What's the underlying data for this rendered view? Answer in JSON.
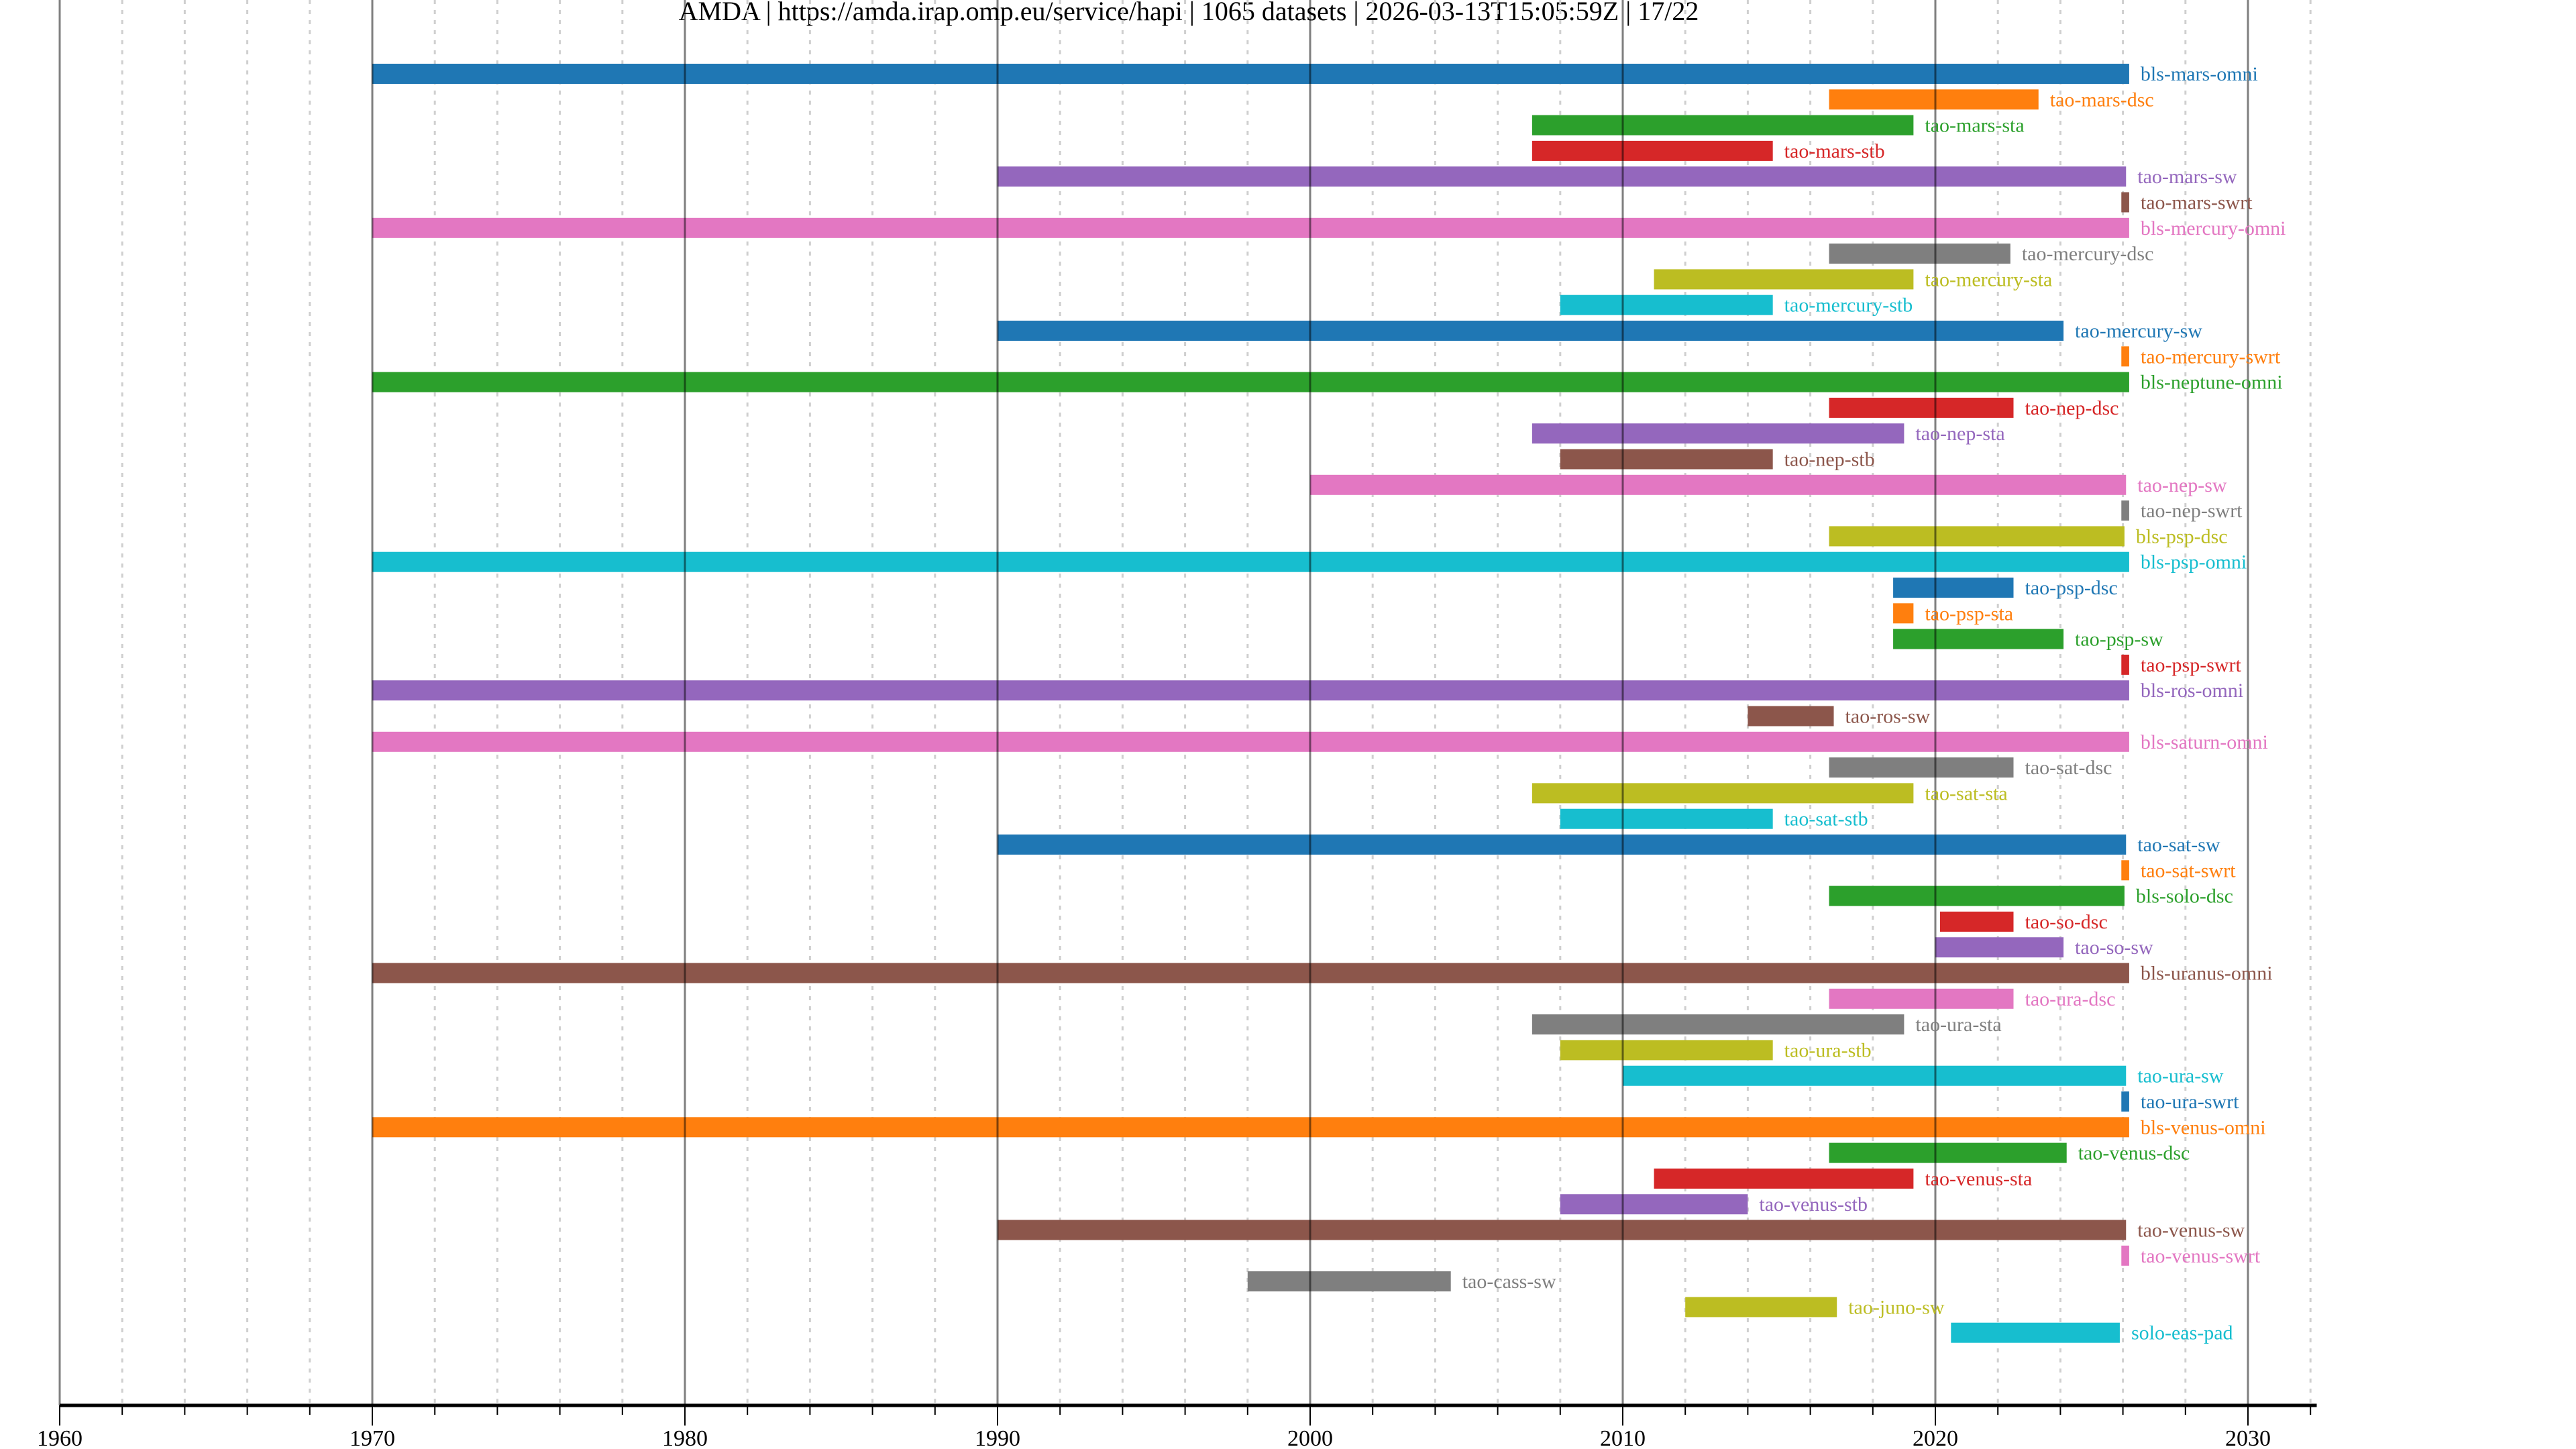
{
  "chart_data": {
    "type": "bar",
    "orientation": "horizontal-timeline",
    "title": "AMDA | https://amda.irap.omp.eu/service/hapi | 1065 datasets | 2026-03-13T15:05:59Z | 17/22",
    "xlabel": "",
    "ylabel": "",
    "xlim": [
      1960,
      2032.2
    ],
    "xticks": [
      "1960",
      "1970",
      "1980",
      "1990",
      "2000",
      "2010",
      "2020",
      "2030"
    ],
    "minor_tick_step_years": 2,
    "grid": true,
    "colors": [
      "#1f77b4",
      "#ff7f0e",
      "#2ca02c",
      "#d62728",
      "#9467bd",
      "#8c564b",
      "#e377c2",
      "#7f7f7f",
      "#bcbd22",
      "#17becf"
    ],
    "series": [
      {
        "name": "bls-mars-omni",
        "start": 1970.0,
        "end": 2026.2
      },
      {
        "name": "tao-mars-dsc",
        "start": 2016.6,
        "end": 2023.3
      },
      {
        "name": "tao-mars-sta",
        "start": 2007.1,
        "end": 2019.3
      },
      {
        "name": "tao-mars-stb",
        "start": 2007.1,
        "end": 2014.8
      },
      {
        "name": "tao-mars-sw",
        "start": 1990.0,
        "end": 2026.1
      },
      {
        "name": "tao-mars-swrt",
        "start": 2025.95,
        "end": 2026.2
      },
      {
        "name": "bls-mercury-omni",
        "start": 1970.0,
        "end": 2026.2
      },
      {
        "name": "tao-mercury-dsc",
        "start": 2016.6,
        "end": 2022.4
      },
      {
        "name": "tao-mercury-sta",
        "start": 2011.0,
        "end": 2019.3
      },
      {
        "name": "tao-mercury-stb",
        "start": 2008.0,
        "end": 2014.8
      },
      {
        "name": "tao-mercury-sw",
        "start": 1990.0,
        "end": 2024.1
      },
      {
        "name": "tao-mercury-swrt",
        "start": 2025.95,
        "end": 2026.2
      },
      {
        "name": "bls-neptune-omni",
        "start": 1970.0,
        "end": 2026.2
      },
      {
        "name": "tao-nep-dsc",
        "start": 2016.6,
        "end": 2022.5
      },
      {
        "name": "tao-nep-sta",
        "start": 2007.1,
        "end": 2019.0
      },
      {
        "name": "tao-nep-stb",
        "start": 2008.0,
        "end": 2014.8
      },
      {
        "name": "tao-nep-sw",
        "start": 2000.0,
        "end": 2026.1
      },
      {
        "name": "tao-nep-swrt",
        "start": 2025.95,
        "end": 2026.2
      },
      {
        "name": "bls-psp-dsc",
        "start": 2016.6,
        "end": 2026.05
      },
      {
        "name": "bls-psp-omni",
        "start": 1970.0,
        "end": 2026.2
      },
      {
        "name": "tao-psp-dsc",
        "start": 2018.65,
        "end": 2022.5
      },
      {
        "name": "tao-psp-sta",
        "start": 2018.65,
        "end": 2019.3
      },
      {
        "name": "tao-psp-sw",
        "start": 2018.65,
        "end": 2024.1
      },
      {
        "name": "tao-psp-swrt",
        "start": 2025.95,
        "end": 2026.2
      },
      {
        "name": "bls-ros-omni",
        "start": 1970.0,
        "end": 2026.2
      },
      {
        "name": "tao-ros-sw",
        "start": 2014.0,
        "end": 2016.75
      },
      {
        "name": "bls-saturn-omni",
        "start": 1970.0,
        "end": 2026.2
      },
      {
        "name": "tao-sat-dsc",
        "start": 2016.6,
        "end": 2022.5
      },
      {
        "name": "tao-sat-sta",
        "start": 2007.1,
        "end": 2019.3
      },
      {
        "name": "tao-sat-stb",
        "start": 2008.0,
        "end": 2014.8
      },
      {
        "name": "tao-sat-sw",
        "start": 1990.0,
        "end": 2026.1
      },
      {
        "name": "tao-sat-swrt",
        "start": 2025.95,
        "end": 2026.2
      },
      {
        "name": "bls-solo-dsc",
        "start": 2016.6,
        "end": 2026.05
      },
      {
        "name": "tao-so-dsc",
        "start": 2020.15,
        "end": 2022.5
      },
      {
        "name": "tao-so-sw",
        "start": 2020.0,
        "end": 2024.1
      },
      {
        "name": "bls-uranus-omni",
        "start": 1970.0,
        "end": 2026.2
      },
      {
        "name": "tao-ura-dsc",
        "start": 2016.6,
        "end": 2022.5
      },
      {
        "name": "tao-ura-sta",
        "start": 2007.1,
        "end": 2019.0
      },
      {
        "name": "tao-ura-stb",
        "start": 2008.0,
        "end": 2014.8
      },
      {
        "name": "tao-ura-sw",
        "start": 2010.0,
        "end": 2026.1
      },
      {
        "name": "tao-ura-swrt",
        "start": 2025.95,
        "end": 2026.2
      },
      {
        "name": "bls-venus-omni",
        "start": 1970.0,
        "end": 2026.2
      },
      {
        "name": "tao-venus-dsc",
        "start": 2016.6,
        "end": 2024.2
      },
      {
        "name": "tao-venus-sta",
        "start": 2011.0,
        "end": 2019.3
      },
      {
        "name": "tao-venus-stb",
        "start": 2008.0,
        "end": 2014.0
      },
      {
        "name": "tao-venus-sw",
        "start": 1990.0,
        "end": 2026.1
      },
      {
        "name": "tao-venus-swrt",
        "start": 2025.95,
        "end": 2026.2
      },
      {
        "name": "tao-cass-sw",
        "start": 1998.0,
        "end": 2004.5
      },
      {
        "name": "tao-juno-sw",
        "start": 2012.0,
        "end": 2016.85
      },
      {
        "name": "solo-eas-pad",
        "start": 2020.5,
        "end": 2025.9
      }
    ]
  }
}
